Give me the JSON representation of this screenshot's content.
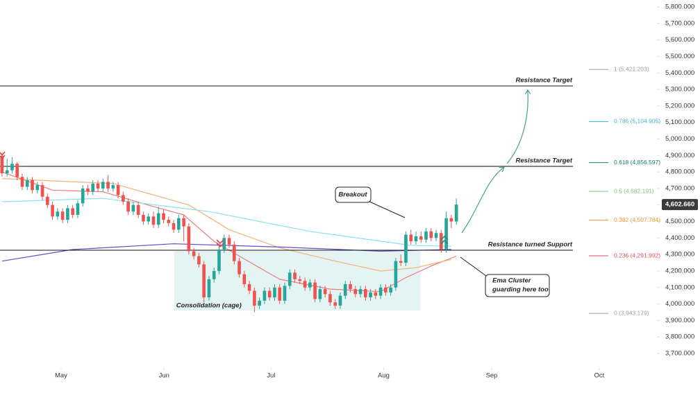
{
  "chart_data": {
    "type": "candlestick",
    "xlim": [
      -0.4,
      129.6
    ],
    "xticks": [
      {
        "value": 11.7,
        "label": "May"
      },
      {
        "value": 32.1,
        "label": "Jun"
      },
      {
        "value": 53.3,
        "label": "Jul"
      },
      {
        "value": 75.6,
        "label": "Aug"
      },
      {
        "value": 97,
        "label": "Sep"
      },
      {
        "value": 118.3,
        "label": "Oct"
      }
    ],
    "ylim": [
      3616,
      5842
    ],
    "yticks": [
      {
        "value": 3700,
        "label": "3,700.000"
      },
      {
        "value": 3800,
        "label": "3,800.000"
      },
      {
        "value": 3900,
        "label": "3,900.000"
      },
      {
        "value": 4000,
        "label": "4,000.000"
      },
      {
        "value": 4100,
        "label": "4,100.000"
      },
      {
        "value": 4200,
        "label": "4,200.000"
      },
      {
        "value": 4300,
        "label": "4,300.000"
      },
      {
        "value": 4400,
        "label": "4,400.000"
      },
      {
        "value": 4500,
        "label": "4,500.000"
      },
      {
        "value": 4600,
        "label": "4,600.000"
      },
      {
        "value": 4700,
        "label": "4,700.000"
      },
      {
        "value": 4800,
        "label": "4,800.000"
      },
      {
        "value": 4900,
        "label": "4,900.000"
      },
      {
        "value": 5000,
        "label": "5,000.000"
      },
      {
        "value": 5100,
        "label": "5,100.000"
      },
      {
        "value": 5200,
        "label": "5,200.000"
      },
      {
        "value": 5300,
        "label": "5,300.000"
      },
      {
        "value": 5400,
        "label": "5,400.000"
      },
      {
        "value": 5500,
        "label": "5,500.000"
      },
      {
        "value": 5600,
        "label": "5,600.000"
      },
      {
        "value": 5700,
        "label": "5,700.000"
      },
      {
        "value": 5800,
        "label": "5,800.000"
      }
    ],
    "grid": false,
    "up_color": "#26a69a",
    "down_color": "#ef5350",
    "open": [
      4897,
      4792,
      4810,
      4850,
      4770,
      4710,
      4750,
      4690,
      4720,
      4650,
      4600,
      4530,
      4560,
      4510,
      4580,
      4540,
      4610,
      4700,
      4680,
      4730,
      4700,
      4740,
      4700,
      4720,
      4660,
      4620,
      4560,
      4600,
      4540,
      4500,
      4530,
      4480,
      4550,
      4510,
      4490,
      4450,
      4520,
      4470,
      4320,
      4290,
      4240,
      4040,
      4150,
      4200,
      4330,
      4400,
      4360,
      4260,
      4180,
      4120,
      4080,
      3990,
      4020,
      4080,
      4040,
      4100,
      4020,
      4110,
      4190,
      4150,
      4140,
      4100,
      4130,
      4030,
      4090,
      4060,
      4010,
      3990,
      4050,
      4120,
      4090,
      4060,
      4090,
      4040,
      4070,
      4050,
      4100,
      4070,
      4100,
      4260,
      4250,
      4420,
      4380,
      4410,
      4390,
      4440,
      4400,
      4430,
      4330,
      4520,
      4500
    ],
    "high": [
      4917,
      4880,
      4890,
      4860,
      4790,
      4770,
      4770,
      4740,
      4740,
      4670,
      4620,
      4580,
      4580,
      4600,
      4600,
      4630,
      4720,
      4720,
      4750,
      4750,
      4760,
      4780,
      4740,
      4740,
      4680,
      4640,
      4620,
      4620,
      4560,
      4550,
      4560,
      4590,
      4570,
      4530,
      4510,
      4540,
      4540,
      4490,
      4340,
      4310,
      4260,
      4170,
      4220,
      4350,
      4420,
      4420,
      4380,
      4280,
      4200,
      4140,
      4100,
      4040,
      4100,
      4100,
      4120,
      4120,
      4130,
      4210,
      4210,
      4170,
      4160,
      4150,
      4150,
      4110,
      4110,
      4080,
      4030,
      4070,
      4140,
      4140,
      4110,
      4110,
      4110,
      4090,
      4090,
      4120,
      4120,
      4120,
      4280,
      4300,
      4440,
      4450,
      4440,
      4440,
      4460,
      4460,
      4450,
      4450,
      4560,
      4540,
      4640
    ],
    "low": [
      4772,
      4772,
      4790,
      4750,
      4690,
      4690,
      4670,
      4670,
      4630,
      4580,
      4510,
      4510,
      4490,
      4490,
      4520,
      4520,
      4590,
      4660,
      4660,
      4680,
      4680,
      4680,
      4680,
      4640,
      4600,
      4540,
      4540,
      4520,
      4480,
      4480,
      4460,
      4460,
      4490,
      4470,
      4430,
      4430,
      4380,
      4300,
      4270,
      4220,
      4010,
      4020,
      4130,
      4180,
      4310,
      4340,
      4240,
      4160,
      4100,
      4060,
      3950,
      3970,
      4000,
      4020,
      4020,
      4000,
      4000,
      4090,
      4130,
      4120,
      4080,
      4080,
      4010,
      4010,
      4040,
      3990,
      3970,
      3970,
      4030,
      4070,
      4040,
      4040,
      4020,
      4020,
      4030,
      4030,
      4050,
      4050,
      4080,
      4230,
      4230,
      4360,
      4360,
      4370,
      4370,
      4380,
      4380,
      4310,
      4310,
      4460,
      4480
    ],
    "close": [
      4792,
      4810,
      4850,
      4770,
      4710,
      4750,
      4690,
      4720,
      4650,
      4600,
      4530,
      4560,
      4510,
      4580,
      4540,
      4610,
      4700,
      4680,
      4730,
      4700,
      4740,
      4700,
      4720,
      4660,
      4620,
      4560,
      4600,
      4540,
      4500,
      4530,
      4480,
      4550,
      4510,
      4490,
      4450,
      4520,
      4470,
      4320,
      4290,
      4240,
      4040,
      4150,
      4200,
      4330,
      4400,
      4360,
      4260,
      4180,
      4120,
      4080,
      3990,
      4020,
      4080,
      4040,
      4100,
      4020,
      4110,
      4190,
      4150,
      4140,
      4100,
      4130,
      4030,
      4090,
      4060,
      4010,
      3990,
      4050,
      4120,
      4090,
      4060,
      4090,
      4040,
      4070,
      4050,
      4100,
      4070,
      4100,
      4260,
      4250,
      4420,
      4380,
      4410,
      4390,
      4440,
      4400,
      4430,
      4330,
      4520,
      4500,
      4602.66
    ],
    "ema": [
      {
        "color": "#f07a80",
        "x": [
          0,
          10,
          20,
          30,
          36,
          42,
          47,
          55,
          65,
          75,
          80,
          85,
          90
        ],
        "values": [
          4800,
          4690,
          4680,
          4590,
          4540,
          4380,
          4290,
          4150,
          4090,
          4075,
          4160,
          4230,
          4290
        ]
      },
      {
        "color": "#f5b07a",
        "x": [
          0,
          22,
          37,
          45,
          55,
          66,
          75,
          82,
          89
        ],
        "values": [
          4760,
          4730,
          4600,
          4450,
          4340,
          4260,
          4200,
          4220,
          4270
        ]
      },
      {
        "color": "#8ddfee",
        "x": [
          0,
          20,
          41,
          61,
          81,
          89
        ],
        "values": [
          4620,
          4640,
          4560,
          4440,
          4355,
          4350
        ]
      },
      {
        "color": "#5a50c8",
        "x": [
          0,
          14,
          34,
          55,
          75,
          89
        ],
        "values": [
          4260,
          4330,
          4365,
          4345,
          4320,
          4330
        ]
      }
    ],
    "levels": [
      {
        "label": "Resistance Target",
        "value": 5321
      },
      {
        "label": "Resistance Target",
        "value": 4834
      },
      {
        "label": "Resistance turned Support",
        "value": 4326
      }
    ],
    "fib_levels": [
      {
        "label": "1 (5,421.203)",
        "value": 5421.203,
        "color": "#9e9e9e"
      },
      {
        "label": "0.786 (5,104.905)",
        "value": 5104.905,
        "color": "#3fb6d8"
      },
      {
        "label": "0.618 (4,856.597)",
        "value": 4856.597,
        "color": "#0f7f6e"
      },
      {
        "label": "0.5 (4,682.191)",
        "value": 4682.191,
        "color": "#7cc67c"
      },
      {
        "label": "0.382 (4,507.784)",
        "value": 4507.784,
        "color": "#f0962a"
      },
      {
        "label": "0.236 (4,291.992)",
        "value": 4291.992,
        "color": "#e0525a"
      },
      {
        "label": "0 (3,943.179)",
        "value": 3943.179,
        "color": "#9e9e9e"
      }
    ],
    "zone": {
      "label": "Consolidation (cage)",
      "x": [
        34.1,
        82.9
      ],
      "y": [
        3960,
        4322
      ]
    },
    "last_price": {
      "value": 4602.66,
      "label": "4,602.660"
    },
    "annotations": {
      "breakout": "Breakout",
      "ema_cluster": [
        "Ema Cluster",
        "guarding here too"
      ]
    }
  }
}
